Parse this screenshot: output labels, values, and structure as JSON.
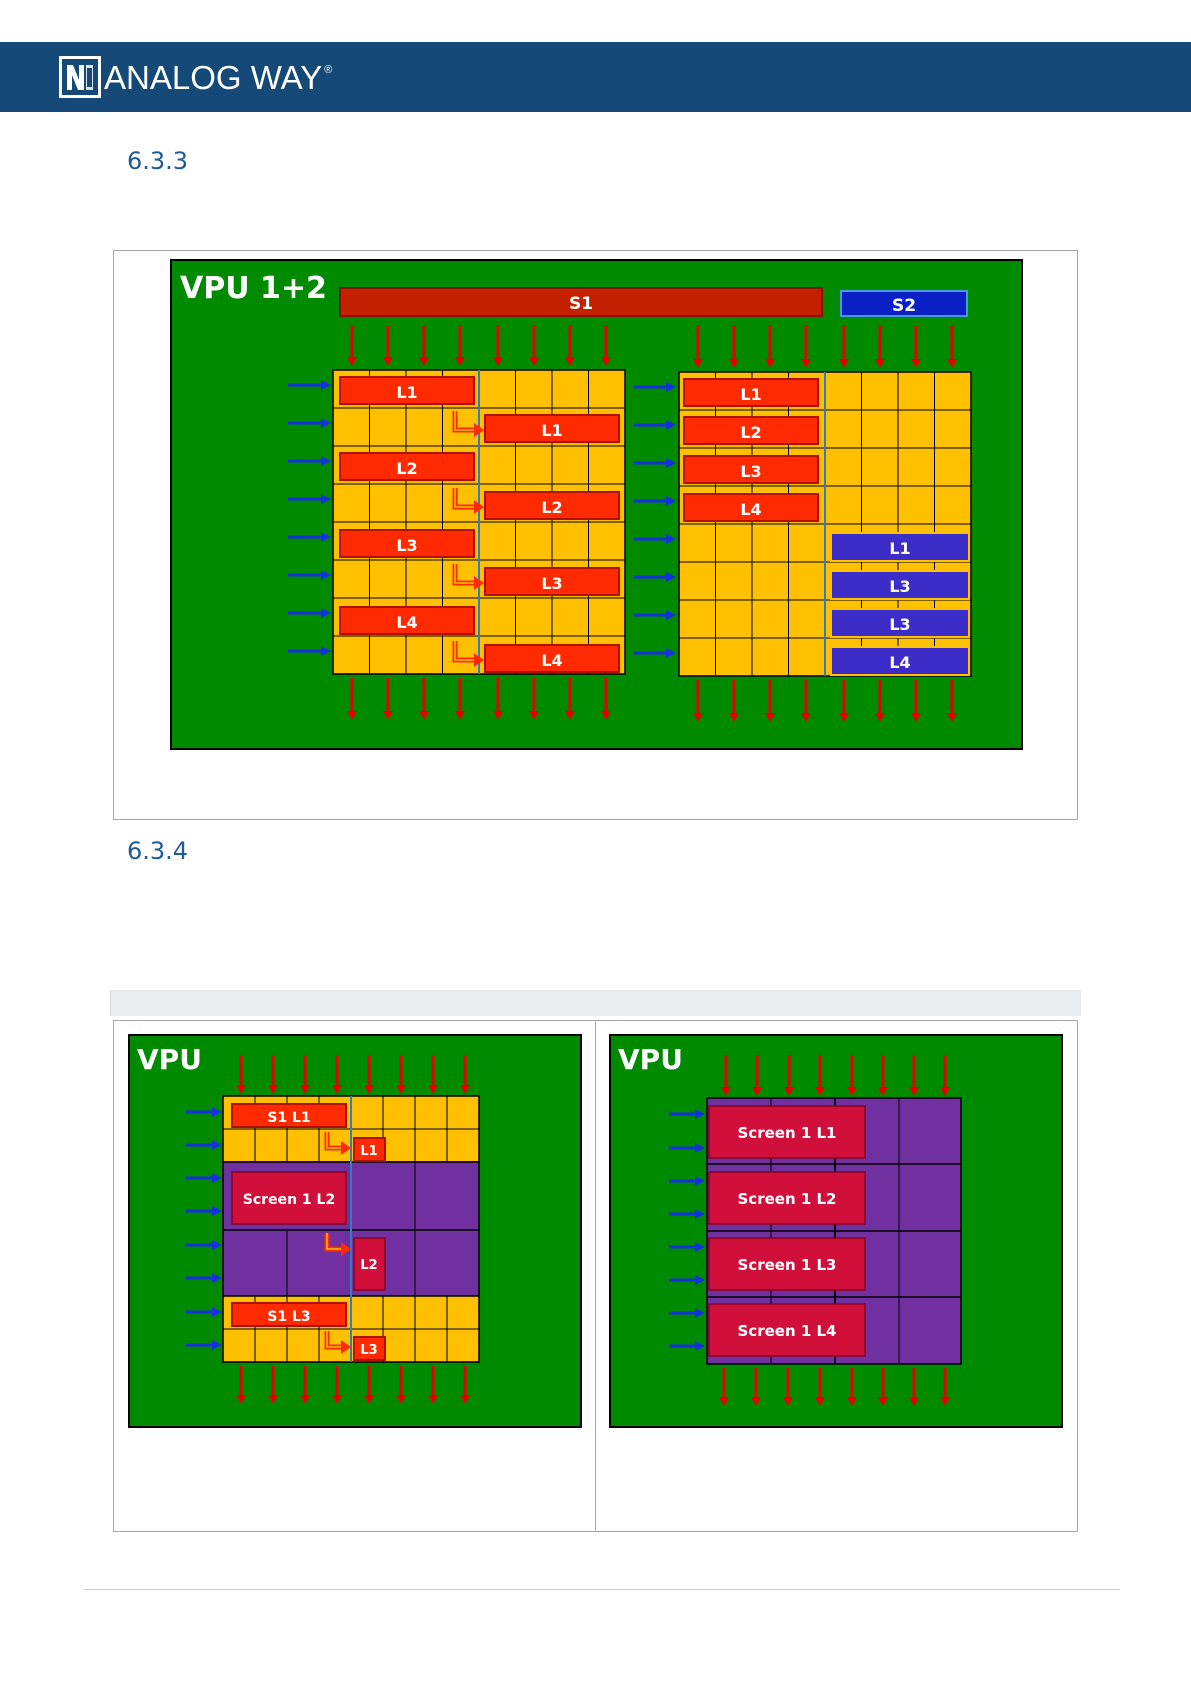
{
  "header": {
    "brand": "ANALOG WAY",
    "registered_mark": "®"
  },
  "sections": [
    {
      "number": "6.3.3"
    },
    {
      "number": "6.3.4"
    }
  ],
  "diagram1": {
    "title": "VPU 1+2",
    "screens": [
      "S1",
      "S2"
    ],
    "left_block": {
      "col1_layers": [
        "L1",
        "L2",
        "L3",
        "L4"
      ],
      "col2_layers": [
        "L1",
        "L2",
        "L3",
        "L4"
      ]
    },
    "right_block": {
      "s1_layers": [
        "L1",
        "L2",
        "L3",
        "L4"
      ],
      "s2_layers": [
        "L1",
        "L3",
        "L3",
        "L4"
      ]
    }
  },
  "diagram2": {
    "title": "VPU",
    "left_labels": [
      "S1 L1",
      "Screen 1 L2",
      "S1 L3"
    ],
    "right_labels": [
      "L1",
      "L2",
      "L3"
    ]
  },
  "diagram3": {
    "title": "VPU",
    "layers": [
      "Screen 1 L1",
      "Screen 1 L2",
      "Screen 1 L3",
      "Screen 1 L4"
    ]
  },
  "colors": {
    "header": "#154a78",
    "green": "#008a00",
    "yellow": "#ffc000",
    "layer_red": "#ff2a00",
    "screen_red": "#c00000",
    "s2_blue": "#0a1fc4",
    "blue_layer": "#3c2dc8",
    "purple": "#7030a0",
    "crimson": "#d0103a"
  }
}
